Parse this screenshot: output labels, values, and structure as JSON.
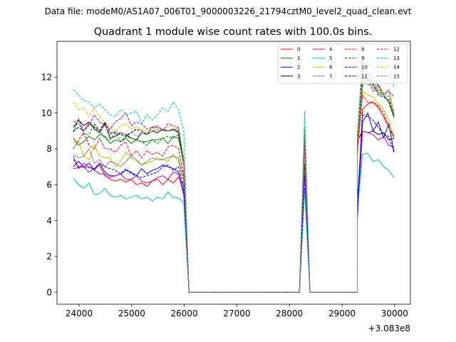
{
  "header": {
    "suptitle": "Data file: modeM0/AS1A07_006T01_9000003226_21794cztM0_level2_quad_clean.evt",
    "title": "Quadrant 1 module wise count rates with 100.0s bins."
  },
  "chart_data": {
    "type": "line",
    "x_offset_label": "+3.083e8",
    "xlim": [
      23580,
      30300
    ],
    "ylim": [
      -0.67,
      14.0
    ],
    "xticks": [
      24000,
      25000,
      26000,
      27000,
      28000,
      29000,
      30000
    ],
    "yticks": [
      0,
      2,
      4,
      6,
      8,
      10,
      12
    ],
    "legend_position": "upper right",
    "legend_columns": 4,
    "segment1_x": [
      23890,
      23990,
      24090,
      24190,
      24290,
      24390,
      24490,
      24590,
      24690,
      24790,
      24890,
      24990,
      25090,
      25190,
      25290,
      25390,
      25490,
      25590,
      25690,
      25790,
      25890,
      25990
    ],
    "dip_x": [
      26090,
      28090
    ],
    "spike_x": [
      28090,
      28190,
      28290,
      28390,
      28490
    ],
    "flat2_x": [
      28490,
      29290
    ],
    "segment2_x": [
      29290,
      29390,
      29490,
      29590,
      29690,
      29790,
      29890,
      29990
    ],
    "series": [
      {
        "name": "0",
        "color": "#ff0000",
        "dash": "solid",
        "seg1": [
          6.9,
          6.95,
          7.0,
          6.95,
          6.9,
          7.1,
          6.5,
          6.3,
          6.2,
          6.3,
          6.15,
          6.3,
          6.0,
          6.1,
          5.9,
          6.2,
          6.3,
          6.0,
          6.3,
          6.1,
          6.4,
          6.0
        ],
        "spike": 7.0,
        "seg2": [
          4.5,
          10.2,
          10.5,
          10.6,
          10.3,
          9.8,
          9.2,
          8.6
        ]
      },
      {
        "name": "1",
        "color": "#008000",
        "dash": "solid",
        "seg1": [
          8.6,
          8.2,
          8.4,
          8.7,
          8.5,
          8.8,
          8.7,
          8.3,
          8.5,
          8.4,
          8.6,
          8.3,
          8.5,
          8.4,
          8.4,
          8.5,
          8.5,
          8.6,
          8.3,
          8.7,
          8.6,
          7.2
        ],
        "spike": 8.3,
        "seg2": [
          8.4,
          11.8,
          12.2,
          12.0,
          11.5,
          11.0,
          10.6,
          9.8
        ]
      },
      {
        "name": "2",
        "color": "#0000ff",
        "dash": "solid",
        "seg1": [
          7.0,
          7.3,
          7.0,
          7.2,
          6.8,
          7.2,
          6.7,
          6.5,
          6.5,
          6.6,
          6.8,
          6.7,
          6.5,
          6.9,
          6.6,
          6.8,
          6.9,
          7.1,
          7.0,
          6.9,
          6.7,
          5.6
        ],
        "spike": 7.2,
        "seg2": [
          5.0,
          9.5,
          10.0,
          9.0,
          9.5,
          8.6,
          9.4,
          7.8
        ]
      },
      {
        "name": "3",
        "color": "#000000",
        "dash": "solid",
        "seg1": [
          9.2,
          9.6,
          9.3,
          9.5,
          9.1,
          8.9,
          9.4,
          8.6,
          8.7,
          8.9,
          8.8,
          8.6,
          8.5,
          8.9,
          8.8,
          9.0,
          8.9,
          9.1,
          9.0,
          9.1,
          8.9,
          7.1
        ],
        "spike": 8.9,
        "seg2": [
          8.4,
          9.0,
          8.9,
          9.0,
          8.8,
          8.9,
          8.5,
          8.6
        ]
      },
      {
        "name": "4",
        "color": "#bf00bf",
        "dash": "solid",
        "seg1": [
          7.6,
          6.9,
          7.2,
          7.0,
          6.8,
          6.6,
          6.6,
          6.4,
          6.5,
          6.6,
          6.3,
          6.3,
          6.5,
          6.2,
          6.1,
          6.2,
          6.4,
          6.5,
          6.3,
          6.7,
          6.6,
          5.4
        ],
        "spike": 6.8,
        "seg2": [
          4.0,
          9.0,
          8.9,
          8.8,
          8.5,
          8.7,
          8.2,
          8.1
        ]
      },
      {
        "name": "5",
        "color": "#00bfbf",
        "dash": "solid",
        "seg1": [
          6.35,
          6.0,
          5.8,
          6.1,
          5.45,
          5.5,
          5.8,
          5.4,
          5.3,
          5.4,
          5.2,
          5.3,
          5.4,
          5.2,
          5.3,
          5.1,
          5.3,
          5.2,
          5.6,
          5.3,
          5.25,
          5.0
        ],
        "spike": 5.8,
        "seg2": [
          4.5,
          7.7,
          7.75,
          7.3,
          7.4,
          7.0,
          6.8,
          6.4
        ]
      },
      {
        "name": "6",
        "color": "#bfbf00",
        "dash": "solid",
        "seg1": [
          8.4,
          8.4,
          7.6,
          7.4,
          8.2,
          7.6,
          7.5,
          7.5,
          7.0,
          7.3,
          7.8,
          7.5,
          7.3,
          7.1,
          7.2,
          7.3,
          7.5,
          7.4,
          7.3,
          7.7,
          7.3,
          6.2
        ],
        "spike": 8.0,
        "seg2": [
          7.5,
          11.2,
          11.0,
          10.9,
          10.5,
          10.2,
          9.6,
          8.6
        ]
      },
      {
        "name": "7",
        "color": "#808080",
        "dash": "solid",
        "seg1": [
          7.7,
          7.5,
          7.6,
          8.0,
          7.2,
          7.4,
          7.0,
          7.3,
          7.2,
          7.0,
          7.3,
          7.6,
          7.4,
          7.1,
          7.3,
          7.5,
          7.4,
          7.4,
          7.5,
          7.6,
          7.5,
          6.3
        ],
        "spike": 8.2,
        "seg2": [
          7.8,
          11.5,
          11.9,
          11.7,
          11.2,
          11.0,
          11.3,
          10.0
        ]
      },
      {
        "name": "8",
        "color": "#ff0000",
        "dash": "dashed",
        "seg1": [
          8.0,
          8.5,
          8.9,
          8.2,
          8.0,
          8.6,
          8.0,
          8.0,
          7.8,
          8.2,
          8.4,
          7.6,
          7.9,
          7.5,
          7.9,
          7.7,
          7.8,
          7.6,
          8.1,
          8.2,
          8.0,
          6.5
        ],
        "spike": 8.8,
        "seg2": [
          8.0,
          11.0,
          10.6,
          10.6,
          10.4,
          10.0,
          9.2,
          8.7
        ]
      },
      {
        "name": "9",
        "color": "#008000",
        "dash": "dashed",
        "seg1": [
          8.9,
          9.7,
          8.8,
          8.8,
          9.4,
          9.0,
          8.6,
          8.5,
          8.9,
          8.4,
          8.7,
          8.6,
          8.5,
          8.4,
          8.2,
          8.5,
          8.3,
          8.6,
          8.7,
          8.6,
          8.8,
          7.1
        ],
        "spike": 9.1,
        "seg2": [
          8.5,
          12.0,
          11.6,
          11.5,
          11.2,
          11.0,
          10.6,
          9.7
        ]
      },
      {
        "name": "10",
        "color": "#0000ff",
        "dash": "dashed",
        "seg1": [
          7.4,
          7.0,
          7.0,
          6.7,
          6.9,
          7.2,
          7.0,
          6.9,
          6.8,
          6.6,
          6.9,
          6.6,
          6.5,
          6.4,
          6.5,
          6.6,
          6.7,
          7.0,
          7.1,
          6.8,
          7.0,
          5.9
        ],
        "spike": 6.5,
        "seg2": [
          4.3,
          9.9,
          9.8,
          9.6,
          9.2,
          8.8,
          8.7,
          7.8
        ]
      },
      {
        "name": "11",
        "color": "#000000",
        "dash": "dashed",
        "seg1": [
          9.0,
          9.2,
          9.0,
          9.4,
          9.2,
          9.0,
          9.5,
          8.9,
          8.9,
          8.8,
          8.7,
          8.9,
          9.1,
          9.0,
          8.8,
          9.2,
          9.2,
          9.1,
          9.0,
          9.1,
          9.0,
          7.3
        ],
        "spike": 9.0,
        "seg2": [
          8.6,
          12.4,
          11.8,
          11.6,
          11.0,
          10.9,
          10.7,
          9.8
        ]
      },
      {
        "name": "12",
        "color": "#bf00bf",
        "dash": "dashed",
        "seg1": [
          9.5,
          9.6,
          9.0,
          9.3,
          9.9,
          9.5,
          9.3,
          9.1,
          9.5,
          9.7,
          10.0,
          9.3,
          9.5,
          9.4,
          9.1,
          9.2,
          9.3,
          9.0,
          9.4,
          9.3,
          9.2,
          7.4
        ],
        "spike": 9.2,
        "seg2": [
          8.8,
          12.9,
          11.9,
          11.2,
          11.6,
          11.1,
          11.2,
          10.9
        ]
      },
      {
        "name": "13",
        "color": "#00bfbf",
        "dash": "dashed",
        "seg1": [
          11.3,
          11.0,
          10.7,
          10.6,
          10.3,
          10.5,
          10.2,
          9.9,
          9.8,
          10.2,
          9.9,
          10.0,
          10.1,
          9.4,
          9.9,
          9.6,
          9.9,
          10.3,
          10.1,
          10.6,
          10.2,
          9.0
        ],
        "spike": 10.1,
        "seg2": [
          8.7,
          13.2,
          12.7,
          12.6,
          12.3,
          12.2,
          12.7,
          11.4
        ]
      },
      {
        "name": "14",
        "color": "#bfbf00",
        "dash": "dashed",
        "seg1": [
          10.6,
          10.2,
          10.3,
          9.8,
          10.3,
          9.8,
          9.5,
          9.2,
          9.0,
          9.3,
          9.4,
          9.1,
          9.2,
          9.1,
          8.9,
          9.2,
          9.0,
          9.1,
          9.2,
          9.3,
          9.1,
          7.5
        ],
        "spike": 9.2,
        "seg2": [
          8.5,
          12.3,
          12.0,
          11.8,
          11.3,
          11.1,
          11.0,
          10.1
        ]
      },
      {
        "name": "15",
        "color": "#808080",
        "dash": "dashed",
        "seg1": [
          9.2,
          9.4,
          9.0,
          9.5,
          9.3,
          9.0,
          9.3,
          8.8,
          9.0,
          8.9,
          8.8,
          8.9,
          8.7,
          8.9,
          8.8,
          9.0,
          9.1,
          9.0,
          9.0,
          9.0,
          9.2,
          7.2
        ],
        "spike": 9.1,
        "seg2": [
          8.4,
          12.0,
          12.0,
          11.4,
          11.1,
          11.0,
          10.9,
          9.9
        ]
      }
    ]
  }
}
